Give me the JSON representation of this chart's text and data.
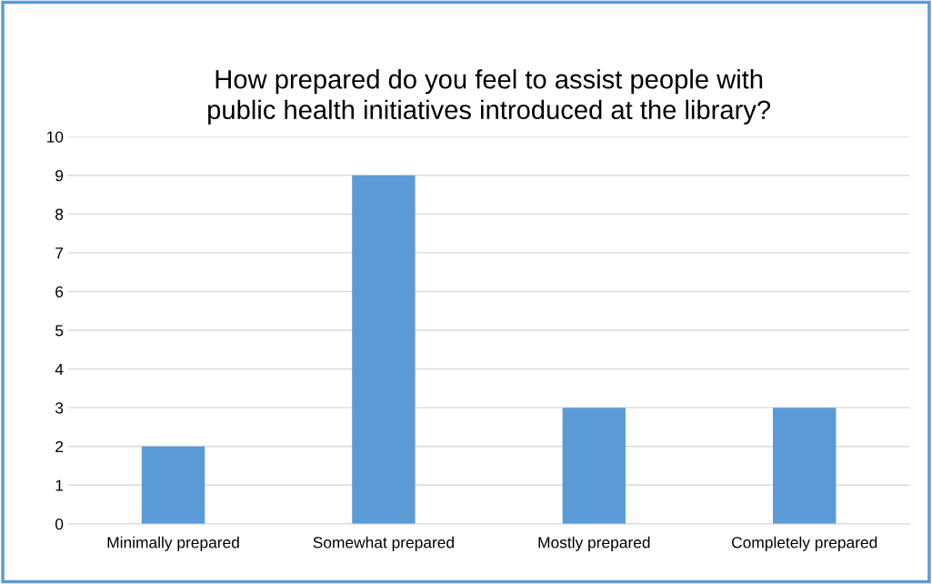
{
  "chart_data": {
    "type": "bar",
    "title": "How prepared do you feel to assist people with\npublic health initiatives introduced at the library?",
    "categories": [
      "Minimally prepared",
      "Somewhat prepared",
      "Mostly prepared",
      "Completely prepared"
    ],
    "values": [
      2,
      9,
      3,
      3
    ],
    "color": "#5b9bd5",
    "ylim": [
      0,
      10
    ],
    "yticks": [
      0,
      1,
      2,
      3,
      4,
      5,
      6,
      7,
      8,
      9,
      10
    ],
    "grid": "y",
    "legend": false
  }
}
